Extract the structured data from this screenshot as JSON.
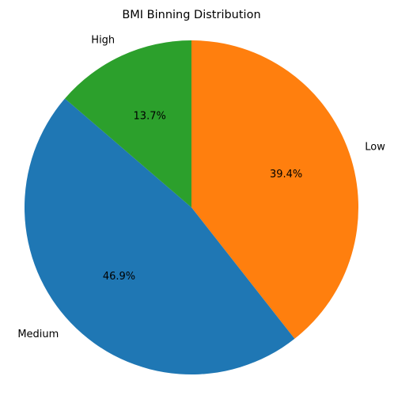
{
  "chart_data": {
    "type": "pie",
    "title": "BMI Binning Distribution",
    "start_angle": 90,
    "direction": "clockwise",
    "slices": [
      {
        "label": "Low",
        "value": 39.4,
        "pct_label": "39.4%",
        "color": "#ff7f0e"
      },
      {
        "label": "Medium",
        "value": 46.9,
        "pct_label": "46.9%",
        "color": "#1f77b4"
      },
      {
        "label": "High",
        "value": 13.7,
        "pct_label": "13.7%",
        "color": "#2ca02c"
      }
    ]
  }
}
